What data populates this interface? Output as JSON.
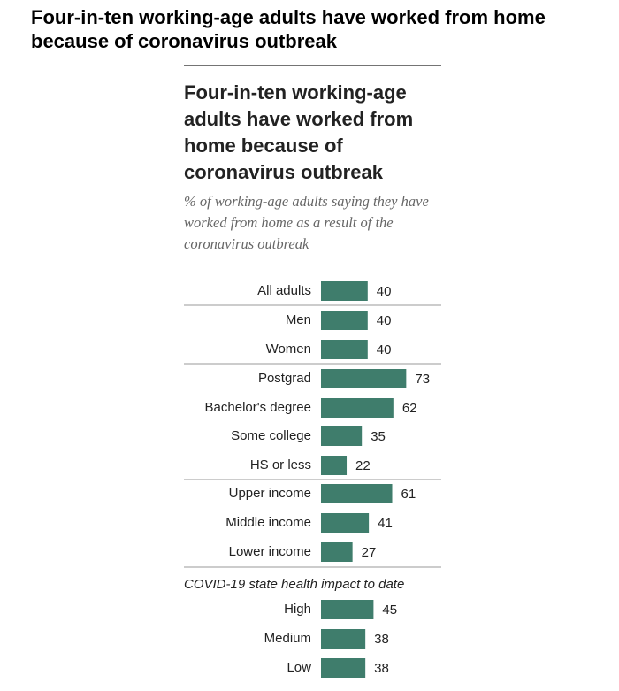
{
  "header": {
    "title": "Four-in-ten working-age adults have worked from home because of coronavirus outbreak"
  },
  "chart_data": {
    "type": "bar",
    "title": "Four-in-ten working-age adults have worked from home because of coronavirus outbreak",
    "subtitle": "% of working-age adults saying they have worked from home as a result of the coronavirus outbreak",
    "group_label": "COVID-19 state health impact to date",
    "categories": [
      "All adults",
      "Men",
      "Women",
      "Postgrad",
      "Bachelor's degree",
      "Some college",
      "HS or less",
      "Upper income",
      "Middle income",
      "Lower income",
      "High",
      "Medium",
      "Low"
    ],
    "values": [
      40,
      40,
      40,
      73,
      62,
      35,
      22,
      61,
      41,
      27,
      45,
      38,
      38
    ],
    "color": "#3f7d6c"
  }
}
